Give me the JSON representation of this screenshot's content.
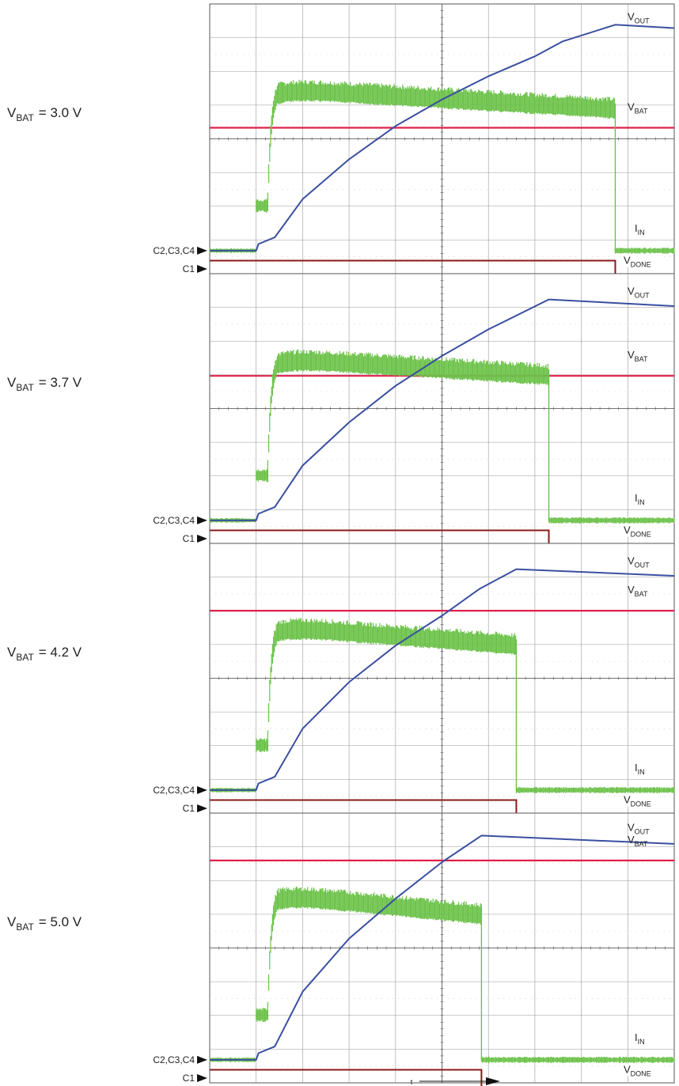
{
  "chart_data": {
    "type": "line",
    "title": "",
    "xlabel": "t",
    "ylabel": "",
    "grid": true,
    "x_divisions": 10,
    "y_divisions": 8,
    "channel_markers": [
      "C2,C3,C4",
      "C1"
    ],
    "colors": {
      "VOUT": "#3a4fa0",
      "VBAT": "#e0204a",
      "IIN": "#6cc24a",
      "VDONE": "#8b1a1a",
      "grid": "#9a9a9a",
      "frame": "#555555"
    },
    "trace_labels": {
      "VOUT": {
        "main": "V",
        "sub": "OUT"
      },
      "VBAT": {
        "main": "V",
        "sub": "BAT"
      },
      "IIN": {
        "main": "I",
        "sub": "IN"
      },
      "VDONE": {
        "main": "V",
        "sub": "DONE"
      }
    },
    "panels": [
      {
        "condition_main": "V",
        "condition_sub": "BAT",
        "condition_value": "=  3.0 V",
        "t_start_div": 1.0,
        "t_done_div": 8.73,
        "vout_curve": [
          [
            0,
            0.55
          ],
          [
            1,
            0.55
          ],
          [
            1.05,
            0.75
          ],
          [
            1.4,
            0.95
          ],
          [
            2,
            2.1
          ],
          [
            3,
            3.3
          ],
          [
            4,
            4.3
          ],
          [
            5,
            5.1
          ],
          [
            6,
            5.8
          ],
          [
            7,
            6.4
          ],
          [
            7.6,
            6.85
          ],
          [
            8.73,
            7.35
          ],
          [
            10,
            7.25
          ]
        ],
        "vout_peak_div": 7.35,
        "vout_end_div": 7.25,
        "vbat_level_div": 4.25,
        "iin_idle_div": 0.55,
        "iin_step_div": 1.9,
        "iin_peak_div": 5.3,
        "iin_end_charge_div": 4.7,
        "iin_after_div": 0.55,
        "vdone_high_div": 0.25,
        "vdone_low_div": -0.5
      },
      {
        "condition_main": "V",
        "condition_sub": "BAT",
        "condition_value": "=  3.7 V",
        "t_start_div": 1.0,
        "t_done_div": 7.3,
        "vout_curve": [
          [
            0,
            0.55
          ],
          [
            1,
            0.55
          ],
          [
            1.05,
            0.75
          ],
          [
            1.4,
            0.95
          ],
          [
            2,
            2.2
          ],
          [
            3,
            3.5
          ],
          [
            4,
            4.6
          ],
          [
            5,
            5.5
          ],
          [
            6,
            6.3
          ],
          [
            7.3,
            7.2
          ],
          [
            10,
            7.0
          ]
        ],
        "vout_peak_div": 7.2,
        "vout_end_div": 7.0,
        "vbat_level_div": 4.9,
        "iin_idle_div": 0.55,
        "iin_step_div": 1.9,
        "iin_peak_div": 5.3,
        "iin_end_charge_div": 4.8,
        "iin_after_div": 0.55,
        "vdone_high_div": 0.25,
        "vdone_low_div": -0.5
      },
      {
        "condition_main": "V",
        "condition_sub": "BAT",
        "condition_value": "=  4.2 V",
        "t_start_div": 1.0,
        "t_done_div": 6.6,
        "vout_curve": [
          [
            0,
            0.55
          ],
          [
            1,
            0.55
          ],
          [
            1.05,
            0.75
          ],
          [
            1.4,
            0.95
          ],
          [
            2,
            2.4
          ],
          [
            3,
            3.8
          ],
          [
            4,
            4.9
          ],
          [
            5,
            5.8
          ],
          [
            5.8,
            6.6
          ],
          [
            6.6,
            7.2
          ],
          [
            10,
            7.0
          ]
        ],
        "vout_peak_div": 7.2,
        "vout_end_div": 7.0,
        "vbat_level_div": 5.95,
        "iin_idle_div": 0.55,
        "iin_step_div": 1.9,
        "iin_peak_div": 5.35,
        "iin_end_charge_div": 4.8,
        "iin_after_div": 0.55,
        "vdone_high_div": 0.25,
        "vdone_low_div": -0.5
      },
      {
        "condition_main": "V",
        "condition_sub": "BAT",
        "condition_value": "=  5.0 V",
        "t_start_div": 1.0,
        "t_done_div": 5.85,
        "vout_curve": [
          [
            0,
            0.55
          ],
          [
            1,
            0.55
          ],
          [
            1.05,
            0.75
          ],
          [
            1.4,
            0.95
          ],
          [
            2,
            2.6
          ],
          [
            3,
            4.2
          ],
          [
            4,
            5.4
          ],
          [
            5,
            6.5
          ],
          [
            5.85,
            7.3
          ],
          [
            10,
            7.05
          ]
        ],
        "vout_peak_div": 7.3,
        "vout_end_div": 7.05,
        "vbat_level_div": 6.55,
        "iin_idle_div": 0.55,
        "iin_step_div": 1.9,
        "iin_peak_div": 5.4,
        "iin_end_charge_div": 4.8,
        "iin_after_div": 0.55,
        "vdone_high_div": 0.25,
        "vdone_low_div": -0.5
      }
    ]
  }
}
